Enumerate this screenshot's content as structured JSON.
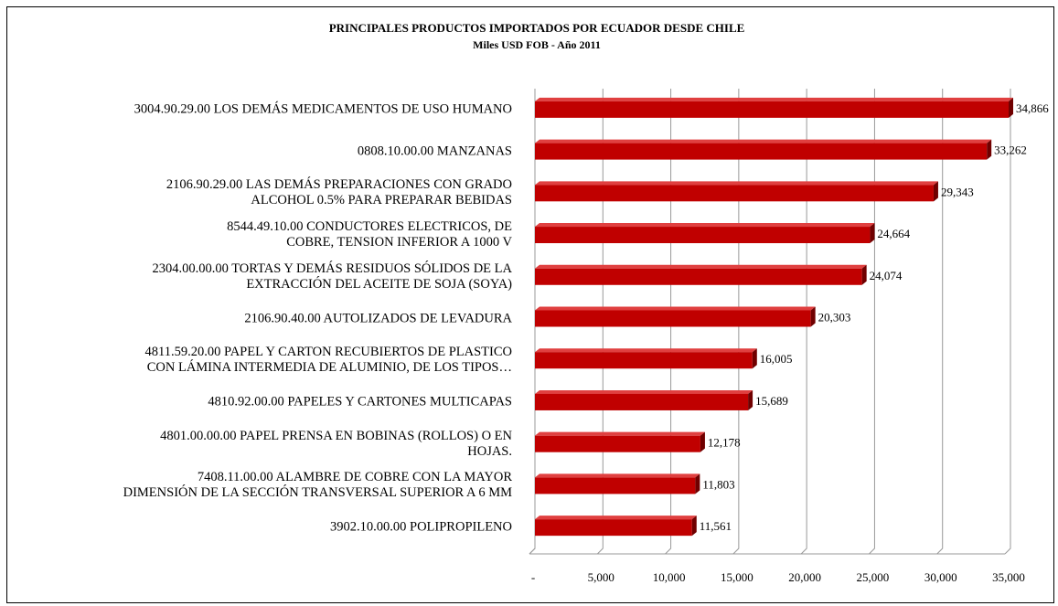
{
  "chart_data": {
    "type": "bar",
    "orientation": "horizontal",
    "title": "PRINCIPALES PRODUCTOS IMPORTADOS POR ECUADOR DESDE CHILE",
    "subtitle": "Miles USD FOB  -  Año 2011",
    "categories": [
      "3004.90.29.00  LOS DEMÁS MEDICAMENTOS DE USO HUMANO",
      "0808.10.00.00  MANZANAS",
      "2106.90.29.00  LAS DEMÁS PREPARACIONES CON GRADO\nALCOHOL 0.5% PARA PREPARAR BEBIDAS",
      "8544.49.10.00  CONDUCTORES ELECTRICOS, DE\nCOBRE, TENSION INFERIOR A 1000 V",
      "2304.00.00.00  TORTAS Y DEMÁS RESIDUOS SÓLIDOS DE LA\nEXTRACCIÓN DEL ACEITE DE SOJA (SOYA)",
      "2106.90.40.00  AUTOLIZADOS DE LEVADURA",
      "4811.59.20.00  PAPEL Y CARTON RECUBIERTOS DE PLASTICO\nCON LÁMINA INTERMEDIA DE ALUMINIO, DE LOS TIPOS…",
      "4810.92.00.00  PAPELES Y CARTONES MULTICAPAS",
      "4801.00.00.00  PAPEL PRENSA EN BOBINAS (ROLLOS) O EN\nHOJAS.",
      "7408.11.00.00  ALAMBRE DE COBRE CON LA MAYOR\nDIMENSIÓN DE LA SECCIÓN TRANSVERSAL SUPERIOR A 6 MM",
      "3902.10.00.00  POLIPROPILENO"
    ],
    "values": [
      34866,
      33262,
      29343,
      24664,
      24074,
      20303,
      16005,
      15689,
      12178,
      11803,
      11561
    ],
    "value_labels": [
      "34,866",
      "33,262",
      "29,343",
      "24,664",
      "24,074",
      "20,303",
      "16,005",
      "15,689",
      "12,178",
      "11,803",
      "11,561"
    ],
    "color": "#c00000",
    "xlim": [
      0,
      35000
    ],
    "xticks": [
      {
        "value": 0,
        "label": "-"
      },
      {
        "value": 5000,
        "label": "5,000"
      },
      {
        "value": 10000,
        "label": "10,000"
      },
      {
        "value": 15000,
        "label": "15,000"
      },
      {
        "value": 20000,
        "label": "20,000"
      },
      {
        "value": 25000,
        "label": "25,000"
      },
      {
        "value": 30000,
        "label": "30,000"
      },
      {
        "value": 35000,
        "label": "35,000"
      }
    ],
    "grid": true
  }
}
